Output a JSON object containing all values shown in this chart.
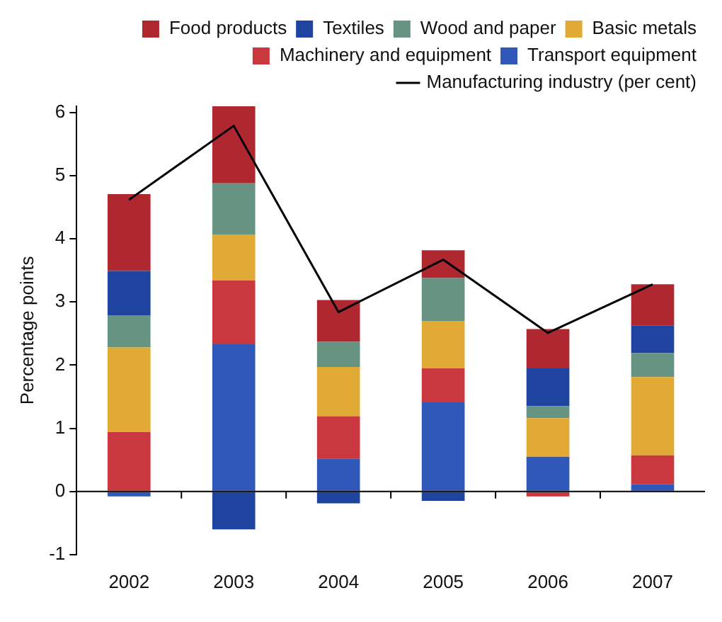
{
  "chart_data": {
    "type": "bar",
    "ylabel": "Percentage points",
    "categories": [
      "2002",
      "2003",
      "2004",
      "2005",
      "2006",
      "2007"
    ],
    "stacked": true,
    "legend": "top right",
    "grid": false,
    "ylim": [
      -1,
      6.1
    ],
    "yticks": [
      -1,
      0,
      1,
      2,
      3,
      4,
      5,
      6
    ],
    "ref_lines": [
      {
        "axis": "y",
        "value": 0,
        "color": "#000000"
      }
    ],
    "series": [
      {
        "name": "Transport equipment",
        "color": "#3058b8",
        "values": [
          -0.08,
          2.33,
          0.52,
          1.41,
          0.55,
          0.11
        ]
      },
      {
        "name": "Machinery and equipment",
        "color": "#c8383e",
        "values": [
          0.94,
          1.01,
          0.67,
          0.54,
          -0.08,
          0.46
        ]
      },
      {
        "name": "Basic metals",
        "color": "#e0aa35",
        "values": [
          1.34,
          0.73,
          0.78,
          0.75,
          0.61,
          1.24
        ]
      },
      {
        "name": "Wood and paper",
        "color": "#679382",
        "values": [
          0.51,
          0.81,
          0.4,
          0.68,
          0.19,
          0.38
        ]
      },
      {
        "name": "Textiles",
        "color": "#1f44a0",
        "values": [
          0.7,
          -0.6,
          -0.19,
          -0.15,
          0.6,
          0.44
        ]
      },
      {
        "name": "Food products",
        "color": "#b0282f",
        "values": [
          1.22,
          1.22,
          0.66,
          0.44,
          0.62,
          0.65
        ]
      },
      {
        "name": "Manufacturing industry (per cent)",
        "type": "line",
        "color": "#000000",
        "marker": "none",
        "line_style": "solid",
        "values": [
          4.62,
          5.79,
          2.84,
          3.67,
          2.51,
          3.28
        ]
      }
    ]
  }
}
